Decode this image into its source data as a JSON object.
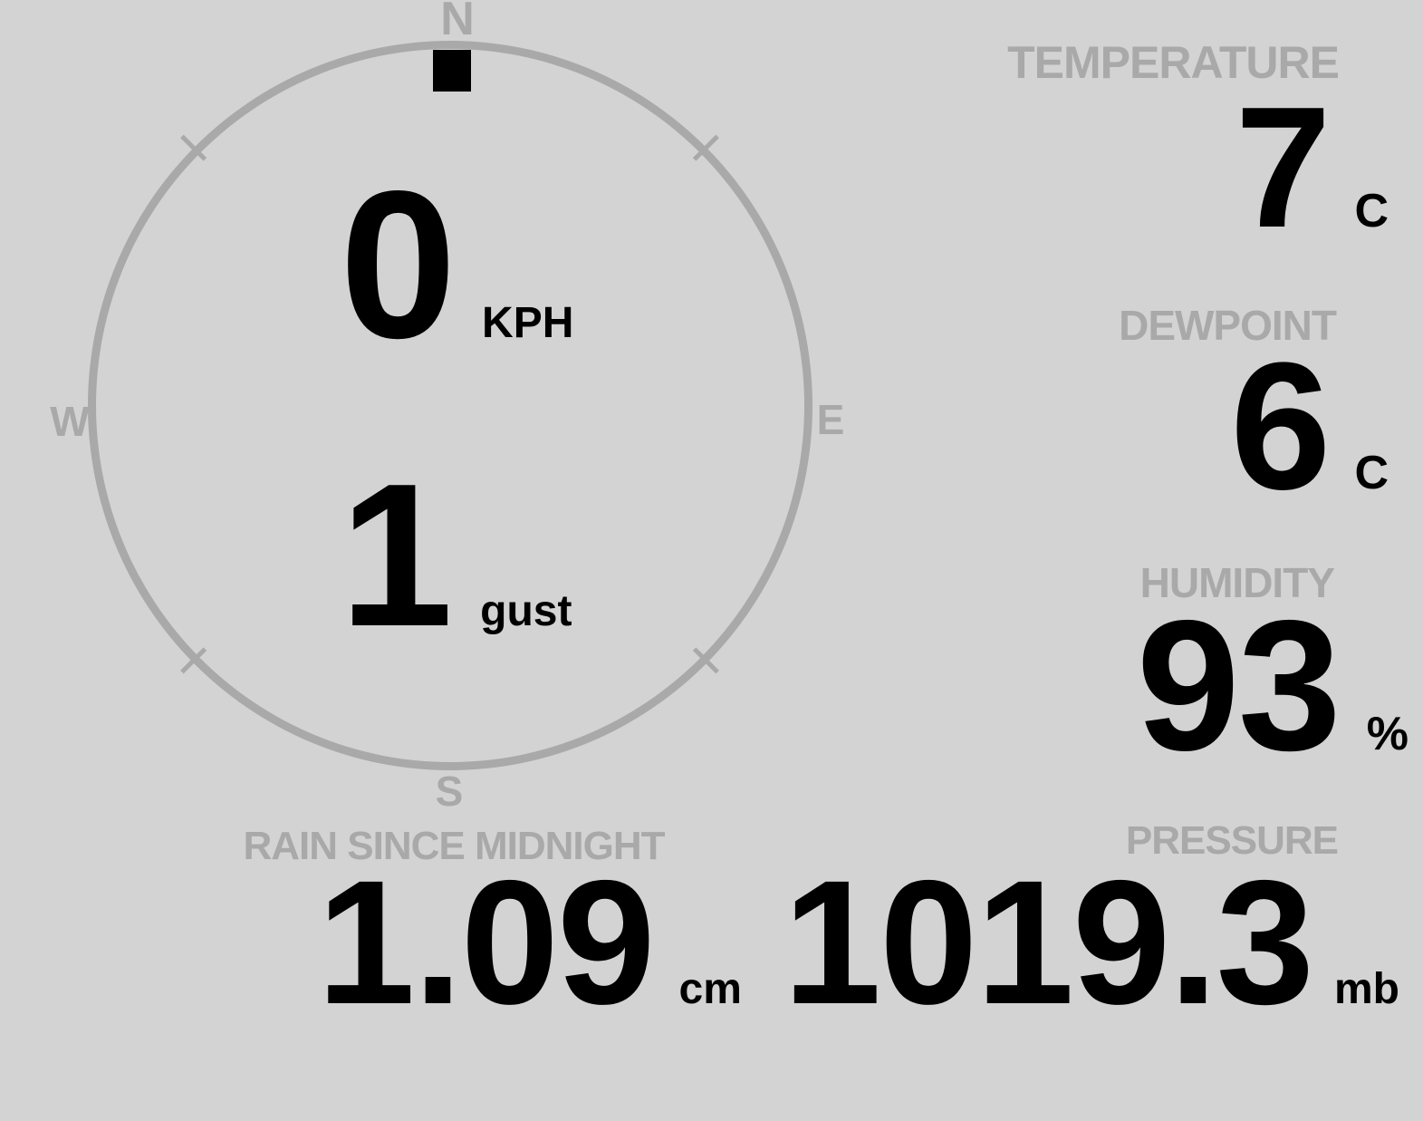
{
  "wind": {
    "compass_labels": {
      "north": "N",
      "east": "E",
      "south": "S",
      "west": "W"
    },
    "speed": "0",
    "speed_unit": "KPH",
    "gust": "1",
    "gust_label": "gust",
    "marker_angle_deg": 0
  },
  "metrics": {
    "temperature": {
      "label": "TEMPERATURE",
      "value": "7",
      "unit": "C"
    },
    "dewpoint": {
      "label": "DEWPOINT",
      "value": "6",
      "unit": "C"
    },
    "humidity": {
      "label": "HUMIDITY",
      "value": "93",
      "unit": "%"
    },
    "rain": {
      "label": "RAIN SINCE MIDNIGHT",
      "value": "1.09",
      "unit": "cm"
    },
    "pressure": {
      "label": "PRESSURE",
      "value": "1019.3",
      "unit": "mb"
    }
  },
  "colors": {
    "background": "#d3d3d3",
    "muted": "#a9a9a9",
    "value": "#000000"
  }
}
